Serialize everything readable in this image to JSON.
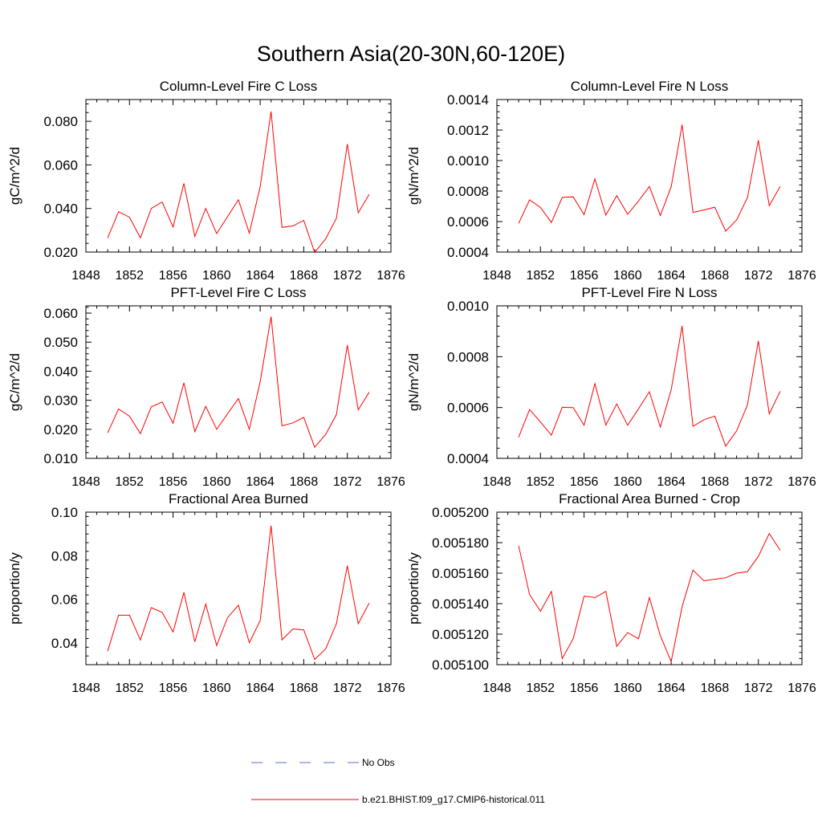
{
  "title": "Southern Asia(20-30N,60-120E)",
  "legend": {
    "items": [
      {
        "label": "No Obs",
        "color": "#5a6cc8",
        "style": "dashed"
      },
      {
        "label": "b.e21.BHIST.f09_g17.CMIP6-historical.011",
        "color": "#ff0000",
        "style": "solid"
      }
    ]
  },
  "chart_data": [
    {
      "type": "line",
      "title": "Column-Level Fire C Loss",
      "ylabel": "gC/m^2/d",
      "xlabel": "",
      "xlim": [
        1848,
        1876
      ],
      "ylim": [
        0.02,
        0.09
      ],
      "x_ticks": [
        "1848",
        "1852",
        "1856",
        "1860",
        "1864",
        "1868",
        "1872",
        "1876"
      ],
      "y_ticks": [
        {
          "v": 0.02,
          "label": "0.020"
        },
        {
          "v": 0.04,
          "label": "0.040"
        },
        {
          "v": 0.06,
          "label": "0.060"
        },
        {
          "v": 0.08,
          "label": "0.080"
        }
      ],
      "series": [
        {
          "color": "#ff0000",
          "x": [
            1850,
            1851,
            1852,
            1853,
            1854,
            1855,
            1856,
            1857,
            1858,
            1859,
            1860,
            1861,
            1862,
            1863,
            1864,
            1865,
            1866,
            1867,
            1868,
            1869,
            1870,
            1871,
            1872,
            1873,
            1874
          ],
          "values": [
            0.0265,
            0.0385,
            0.036,
            0.0265,
            0.04,
            0.043,
            0.0315,
            0.0515,
            0.0272,
            0.04,
            0.0285,
            0.0362,
            0.044,
            0.0287,
            0.05,
            0.0845,
            0.0313,
            0.032,
            0.0345,
            0.0198,
            0.026,
            0.0355,
            0.0695,
            0.038,
            0.0465
          ]
        }
      ]
    },
    {
      "type": "line",
      "title": "Column-Level Fire N Loss",
      "ylabel": "gN/m^2/d",
      "xlabel": "",
      "xlim": [
        1848,
        1876
      ],
      "ylim": [
        0.0004,
        0.0014
      ],
      "x_ticks": [
        "1848",
        "1852",
        "1856",
        "1860",
        "1864",
        "1868",
        "1872",
        "1876"
      ],
      "y_ticks": [
        {
          "v": 0.0004,
          "label": "0.0004"
        },
        {
          "v": 0.0006,
          "label": "0.0006"
        },
        {
          "v": 0.0008,
          "label": "0.0008"
        },
        {
          "v": 0.001,
          "label": "0.0010"
        },
        {
          "v": 0.0012,
          "label": "0.0012"
        },
        {
          "v": 0.0014,
          "label": "0.0014"
        }
      ],
      "series": [
        {
          "color": "#ff0000",
          "x": [
            1850,
            1851,
            1852,
            1853,
            1854,
            1855,
            1856,
            1857,
            1858,
            1859,
            1860,
            1861,
            1862,
            1863,
            1864,
            1865,
            1866,
            1867,
            1868,
            1869,
            1870,
            1871,
            1872,
            1873,
            1874
          ],
          "values": [
            0.000588,
            0.000742,
            0.000692,
            0.000594,
            0.000758,
            0.000762,
            0.000645,
            0.000879,
            0.000642,
            0.00077,
            0.000648,
            0.000735,
            0.00083,
            0.00064,
            0.000828,
            0.001235,
            0.00066,
            0.000676,
            0.000694,
            0.000537,
            0.00061,
            0.000757,
            0.001133,
            0.000704,
            0.00083
          ]
        }
      ]
    },
    {
      "type": "line",
      "title": "PFT-Level Fire C Loss",
      "ylabel": "gC/m^2/d",
      "xlabel": "",
      "xlim": [
        1848,
        1876
      ],
      "ylim": [
        0.01,
        0.0625
      ],
      "x_ticks": [
        "1848",
        "1852",
        "1856",
        "1860",
        "1864",
        "1868",
        "1872",
        "1876"
      ],
      "y_ticks": [
        {
          "v": 0.01,
          "label": "0.010"
        },
        {
          "v": 0.02,
          "label": "0.020"
        },
        {
          "v": 0.03,
          "label": "0.030"
        },
        {
          "v": 0.04,
          "label": "0.040"
        },
        {
          "v": 0.05,
          "label": "0.050"
        },
        {
          "v": 0.06,
          "label": "0.060"
        }
      ],
      "series": [
        {
          "color": "#ff0000",
          "x": [
            1850,
            1851,
            1852,
            1853,
            1854,
            1855,
            1856,
            1857,
            1858,
            1859,
            1860,
            1861,
            1862,
            1863,
            1864,
            1865,
            1866,
            1867,
            1868,
            1869,
            1870,
            1871,
            1872,
            1873,
            1874
          ],
          "values": [
            0.0188,
            0.027,
            0.0245,
            0.0185,
            0.0277,
            0.0294,
            0.0221,
            0.036,
            0.0192,
            0.0279,
            0.02,
            0.0253,
            0.0306,
            0.02,
            0.0364,
            0.0588,
            0.0212,
            0.0222,
            0.0241,
            0.0138,
            0.0182,
            0.0251,
            0.049,
            0.0267,
            0.0328
          ]
        }
      ]
    },
    {
      "type": "line",
      "title": "PFT-Level Fire N Loss",
      "ylabel": "gN/m^2/d",
      "xlabel": "",
      "xlim": [
        1848,
        1876
      ],
      "ylim": [
        0.0004,
        0.001
      ],
      "x_ticks": [
        "1848",
        "1852",
        "1856",
        "1860",
        "1864",
        "1868",
        "1872",
        "1876"
      ],
      "y_ticks": [
        {
          "v": 0.0004,
          "label": "0.0004"
        },
        {
          "v": 0.0006,
          "label": "0.0006"
        },
        {
          "v": 0.0008,
          "label": "0.0008"
        },
        {
          "v": 0.001,
          "label": "0.0010"
        }
      ],
      "series": [
        {
          "color": "#ff0000",
          "x": [
            1850,
            1851,
            1852,
            1853,
            1854,
            1855,
            1856,
            1857,
            1858,
            1859,
            1860,
            1861,
            1862,
            1863,
            1864,
            1865,
            1866,
            1867,
            1868,
            1869,
            1870,
            1871,
            1872,
            1873,
            1874
          ],
          "values": [
            0.000483,
            0.000592,
            0.000543,
            0.000491,
            0.000601,
            0.0006,
            0.00053,
            0.000694,
            0.000531,
            0.000614,
            0.00053,
            0.000595,
            0.000662,
            0.000523,
            0.000669,
            0.000921,
            0.000526,
            0.000552,
            0.000566,
            0.000448,
            0.000508,
            0.00061,
            0.000862,
            0.000575,
            0.000664
          ]
        }
      ]
    },
    {
      "type": "line",
      "title": "Fractional Area Burned",
      "ylabel": "proportion/y",
      "xlabel": "",
      "xlim": [
        1848,
        1876
      ],
      "ylim": [
        0.03,
        0.1
      ],
      "x_ticks": [
        "1848",
        "1852",
        "1856",
        "1860",
        "1864",
        "1868",
        "1872",
        "1876"
      ],
      "y_ticks": [
        {
          "v": 0.04,
          "label": "0.04"
        },
        {
          "v": 0.06,
          "label": "0.06"
        },
        {
          "v": 0.08,
          "label": "0.08"
        },
        {
          "v": 0.1,
          "label": "0.10"
        }
      ],
      "series": [
        {
          "color": "#ff0000",
          "x": [
            1850,
            1851,
            1852,
            1853,
            1854,
            1855,
            1856,
            1857,
            1858,
            1859,
            1860,
            1861,
            1862,
            1863,
            1864,
            1865,
            1866,
            1867,
            1868,
            1869,
            1870,
            1871,
            1872,
            1873,
            1874
          ],
          "values": [
            0.0362,
            0.0527,
            0.0527,
            0.0413,
            0.0562,
            0.054,
            0.045,
            0.0632,
            0.0405,
            0.0578,
            0.0388,
            0.0515,
            0.0573,
            0.0401,
            0.0502,
            0.0938,
            0.0414,
            0.0464,
            0.046,
            0.0324,
            0.0372,
            0.0488,
            0.0754,
            0.0488,
            0.0583
          ]
        }
      ]
    },
    {
      "type": "line",
      "title": "Fractional Area Burned - Crop",
      "ylabel": "proportion/y",
      "xlabel": "",
      "xlim": [
        1848,
        1876
      ],
      "ylim": [
        0.0051,
        0.0052
      ],
      "x_ticks": [
        "1848",
        "1852",
        "1856",
        "1860",
        "1864",
        "1868",
        "1872",
        "1876"
      ],
      "y_ticks": [
        {
          "v": 0.0051,
          "label": "0.005100"
        },
        {
          "v": 0.00512,
          "label": "0.005120"
        },
        {
          "v": 0.00514,
          "label": "0.005140"
        },
        {
          "v": 0.00516,
          "label": "0.005160"
        },
        {
          "v": 0.00518,
          "label": "0.005180"
        },
        {
          "v": 0.0052,
          "label": "0.005200"
        }
      ],
      "series": [
        {
          "color": "#ff0000",
          "x": [
            1850,
            1851,
            1852,
            1853,
            1854,
            1855,
            1856,
            1857,
            1858,
            1859,
            1860,
            1861,
            1862,
            1863,
            1864,
            1865,
            1866,
            1867,
            1868,
            1869,
            1870,
            1871,
            1872,
            1873,
            1874
          ],
          "values": [
            0.005178,
            0.005146,
            0.005135,
            0.005148,
            0.005104,
            0.005117,
            0.005145,
            0.005144,
            0.005148,
            0.005112,
            0.005121,
            0.005117,
            0.005144,
            0.005119,
            0.005102,
            0.005138,
            0.005162,
            0.005155,
            0.005156,
            0.005157,
            0.00516,
            0.005161,
            0.005171,
            0.005186,
            0.005175
          ]
        }
      ]
    }
  ]
}
